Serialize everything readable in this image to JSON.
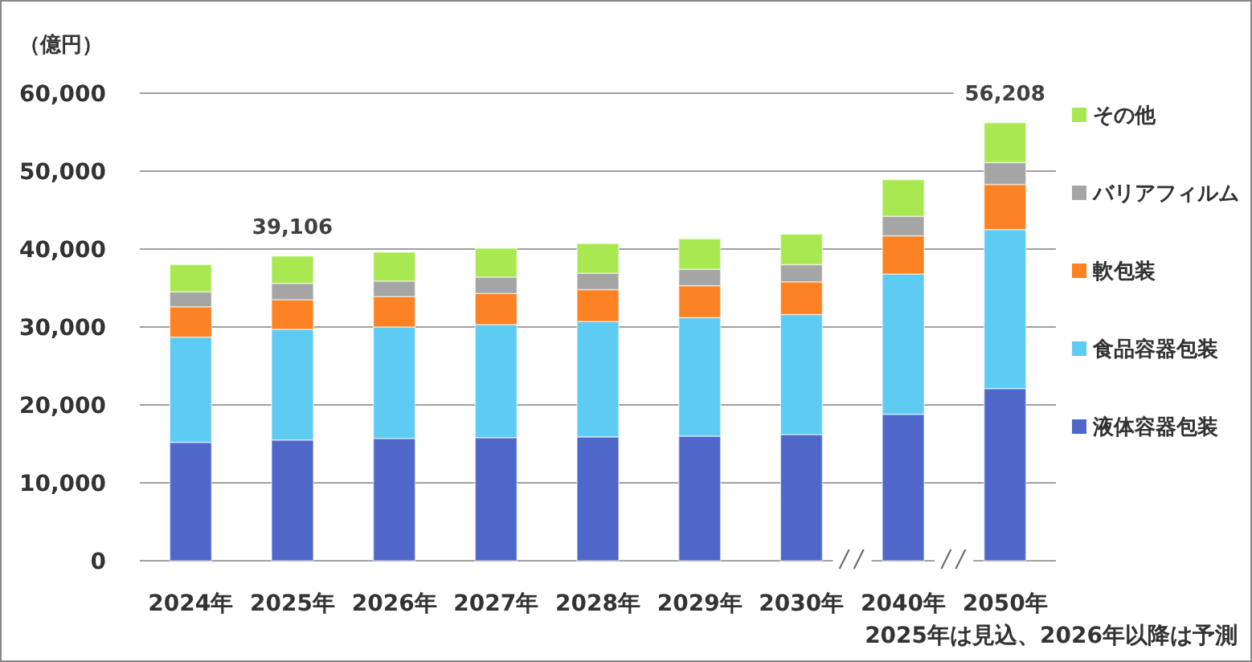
{
  "chart_data": {
    "type": "bar",
    "stacked": true,
    "ylabel": "（億円）",
    "categories": [
      "2024年",
      "2025年",
      "2026年",
      "2027年",
      "2028年",
      "2029年",
      "2030年",
      "2040年",
      "2050年"
    ],
    "series": [
      {
        "name": "液体容器包装",
        "color": "#4f67c8",
        "values": [
          15200,
          15500,
          15700,
          15800,
          15900,
          16000,
          16200,
          18800,
          22100
        ]
      },
      {
        "name": "食品容器包装",
        "color": "#5ecbf2",
        "values": [
          13500,
          14200,
          14300,
          14500,
          14800,
          15200,
          15400,
          18000,
          20400
        ]
      },
      {
        "name": "軟包装",
        "color": "#fd8224",
        "values": [
          3900,
          3800,
          3900,
          4000,
          4100,
          4100,
          4200,
          4900,
          5800
        ]
      },
      {
        "name": "バリアフィルム",
        "color": "#a5a5a5",
        "values": [
          1900,
          2100,
          2000,
          2100,
          2100,
          2100,
          2200,
          2500,
          2800
        ]
      },
      {
        "name": "その他",
        "color": "#a9e851",
        "values": [
          3500,
          3506,
          3700,
          3700,
          3800,
          3900,
          3900,
          4700,
          5108
        ]
      }
    ],
    "totals": [
      null,
      "39,106",
      null,
      null,
      null,
      null,
      null,
      null,
      "56,208"
    ],
    "ylim": [
      0,
      60000
    ],
    "yticks": [
      0,
      {
        "value": 10000,
        "label": "10,000"
      },
      {
        "value": 20000,
        "label": "20,000"
      },
      {
        "value": 30000,
        "label": "30,000"
      },
      {
        "value": 40000,
        "label": "40,000"
      },
      {
        "value": 50000,
        "label": "50,000"
      },
      {
        "value": 60000,
        "label": "60,000"
      }
    ],
    "grid": "y",
    "legend": "right",
    "annotations": [
      "2025年は見込、2026年以降は予測"
    ]
  }
}
